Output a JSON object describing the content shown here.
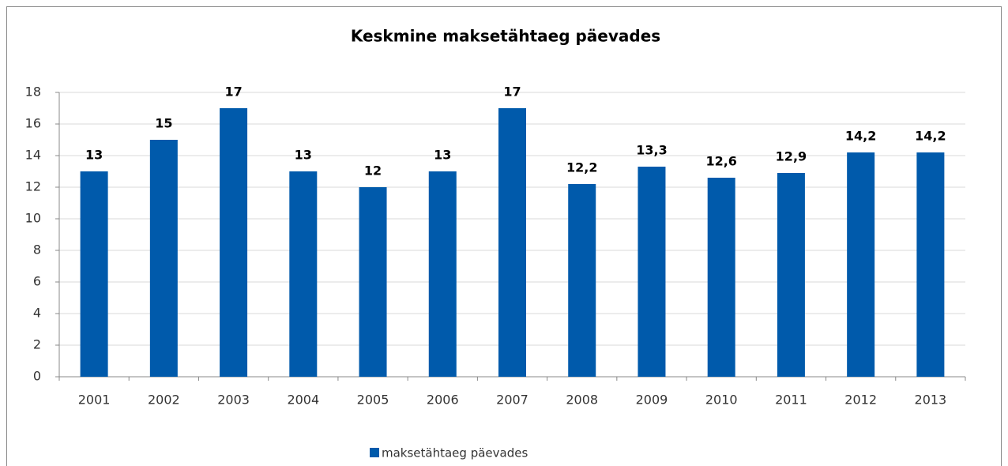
{
  "chart_data": {
    "type": "bar",
    "title": "Keskmine maksetähtaeg päevades",
    "categories": [
      "2001",
      "2002",
      "2003",
      "2004",
      "2005",
      "2006",
      "2007",
      "2008",
      "2009",
      "2010",
      "2011",
      "2012",
      "2013"
    ],
    "series": [
      {
        "name": "maksetähtaeg päevades",
        "color": "#005aab",
        "values": [
          13,
          15,
          17,
          13,
          12,
          13,
          17,
          12.2,
          13.3,
          12.6,
          12.9,
          14.2,
          14.2
        ],
        "value_labels": [
          "13",
          "15",
          "17",
          "13",
          "12",
          "13",
          "17",
          "12,2",
          "13,3",
          "12,6",
          "12,9",
          "14,2",
          "14,2"
        ]
      }
    ],
    "ylim": [
      0,
      18
    ],
    "yticks": [
      0,
      2,
      4,
      6,
      8,
      10,
      12,
      14,
      16,
      18
    ],
    "grid": true,
    "legend": "bottom"
  }
}
